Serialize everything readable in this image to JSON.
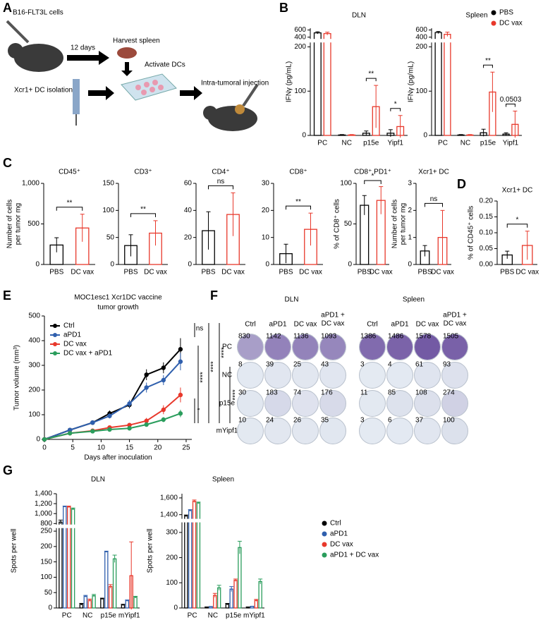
{
  "panels": [
    "A",
    "B",
    "C",
    "D",
    "E",
    "F",
    "G"
  ],
  "schematic": {
    "texts": [
      "B16-FLT3L cells",
      "12 days",
      "Harvest spleen",
      "Activate DCs",
      "Intra-tumoral injection",
      "Xcr1+ DC isolation"
    ]
  },
  "chart_data": [
    {
      "type": "bar",
      "title": "DLN",
      "ylabel": "IFNγ (pg/mL)",
      "categories": [
        "PC",
        "NC",
        "p15e",
        "Yipf1"
      ],
      "series": [
        {
          "name": "PBS",
          "color": "#000000",
          "values": [
            520,
            1,
            5,
            5
          ],
          "errors": [
            30,
            1,
            5,
            8
          ]
        },
        {
          "name": "DC vax",
          "color": "#e8382b",
          "values": [
            500,
            1,
            65,
            20
          ],
          "errors": [
            40,
            1,
            48,
            25
          ]
        }
      ],
      "ylim": [
        0,
        650
      ],
      "axis_break": [
        210,
        350
      ],
      "yticks": [
        0,
        100,
        200,
        400,
        600
      ],
      "significance": [
        null,
        null,
        "**",
        "*"
      ]
    },
    {
      "type": "bar",
      "title": "Spleen",
      "ylabel": "IFNγ (pg/mL)",
      "categories": [
        "PC",
        "NC",
        "p15e",
        "Yipf1"
      ],
      "series": [
        {
          "name": "PBS",
          "color": "#000000",
          "values": [
            530,
            1,
            6,
            3
          ],
          "errors": [
            30,
            1,
            8,
            3
          ]
        },
        {
          "name": "DC vax",
          "color": "#e8382b",
          "values": [
            480,
            1,
            98,
            25
          ],
          "errors": [
            60,
            1,
            45,
            30
          ]
        }
      ],
      "ylim": [
        0,
        650
      ],
      "axis_break": [
        210,
        350
      ],
      "yticks": [
        0,
        100,
        200,
        400,
        600
      ],
      "significance": [
        null,
        null,
        "**",
        "0.0503"
      ],
      "legend": true
    },
    {
      "type": "bar",
      "title": "CD45⁺",
      "ylabel": [
        "Number of cells",
        "per tumor mg"
      ],
      "categories": [
        "PBS",
        "DC vax"
      ],
      "values": [
        240,
        450
      ],
      "errors": [
        90,
        170
      ],
      "colors": [
        "#000000",
        "#e8382b"
      ],
      "ylim": [
        0,
        1000
      ],
      "yticks": [
        0,
        500,
        {
          "value": 1000,
          "label": "1,000"
        }
      ],
      "significance": "**"
    },
    {
      "type": "bar",
      "title": "CD3⁺",
      "categories": [
        "PBS",
        "DC vax"
      ],
      "values": [
        35,
        58
      ],
      "errors": [
        20,
        23
      ],
      "colors": [
        "#000000",
        "#e8382b"
      ],
      "ylim": [
        0,
        150
      ],
      "yticks": [
        0,
        50,
        100,
        150
      ],
      "significance": "**"
    },
    {
      "type": "bar",
      "title": "CD4⁺",
      "categories": [
        "PBS",
        "DC vax"
      ],
      "values": [
        25,
        37
      ],
      "errors": [
        14,
        16
      ],
      "colors": [
        "#000000",
        "#e8382b"
      ],
      "ylim": [
        0,
        60
      ],
      "yticks": [
        0,
        20,
        40,
        60
      ],
      "significance": "ns"
    },
    {
      "type": "bar",
      "title": "CD8⁺",
      "categories": [
        "PBS",
        "DC vax"
      ],
      "values": [
        4,
        13
      ],
      "errors": [
        3.5,
        6
      ],
      "colors": [
        "#000000",
        "#e8382b"
      ],
      "ylim": [
        0,
        30
      ],
      "yticks": [
        0,
        10,
        20,
        30
      ],
      "significance": "**"
    },
    {
      "type": "bar",
      "title": "CD8⁺ PD1⁺",
      "ylabel": "% of CD8⁺ cells",
      "categories": [
        "PBS",
        "DC vax"
      ],
      "values": [
        73,
        79
      ],
      "errors": [
        12,
        17
      ],
      "colors": [
        "#000000",
        "#e8382b"
      ],
      "ylim": [
        0,
        100
      ],
      "yticks": [
        0,
        50,
        100
      ],
      "significance": "*"
    },
    {
      "type": "bar",
      "title": "Xcr1+ DC",
      "ylabel": [
        "Number of cells",
        "per tumor mg"
      ],
      "categories": [
        "PBS",
        "DC vax"
      ],
      "values": [
        0.5,
        1.0
      ],
      "errors": [
        0.2,
        1.0
      ],
      "colors": [
        "#000000",
        "#e8382b"
      ],
      "ylim": [
        0,
        3
      ],
      "yticks": [
        0,
        1,
        2,
        3
      ],
      "significance": "ns"
    },
    {
      "type": "bar",
      "title": "Xcr1+ DC",
      "ylabel": "% of CD45⁺ cells",
      "categories": [
        "PBS",
        "DC vax"
      ],
      "values": [
        0.03,
        0.06
      ],
      "errors": [
        0.012,
        0.045
      ],
      "colors": [
        "#000000",
        "#e8382b"
      ],
      "ylim": [
        0,
        0.2
      ],
      "yticks": [
        {
          "value": 0,
          "label": "0.00"
        },
        {
          "value": 0.05,
          "label": "0.05"
        },
        {
          "value": 0.1,
          "label": "0.10"
        },
        {
          "value": 0.15,
          "label": "0.15"
        },
        {
          "value": 0.2,
          "label": "0.20"
        }
      ],
      "significance": "*"
    },
    {
      "type": "line",
      "title": [
        "MOC1esc1 Xcr1DC vaccine",
        "tumor growth"
      ],
      "xlabel": "Days after inoculation",
      "ylabel": "Tumor volume (mm³)",
      "x": [
        0,
        4.5,
        8.5,
        11.5,
        15,
        18,
        21,
        24
      ],
      "series": [
        {
          "name": "Ctrl",
          "color": "#000000",
          "values": [
            0,
            38,
            68,
            105,
            140,
            262,
            290,
            365
          ],
          "errors": [
            0,
            4,
            6,
            12,
            14,
            22,
            22,
            45
          ]
        },
        {
          "name": "aPD1",
          "color": "#2f5fad",
          "values": [
            0,
            38,
            68,
            95,
            145,
            210,
            240,
            315
          ],
          "errors": [
            0,
            4,
            6,
            10,
            15,
            20,
            20,
            35
          ]
        },
        {
          "name": "DC vax",
          "color": "#e8382b",
          "values": [
            0,
            25,
            35,
            48,
            58,
            75,
            120,
            180
          ],
          "errors": [
            0,
            3,
            4,
            6,
            8,
            12,
            18,
            30
          ]
        },
        {
          "name": "DC vax + aPD1",
          "color": "#2a9d5c",
          "values": [
            0,
            25,
            33,
            40,
            45,
            60,
            80,
            105
          ],
          "errors": [
            0,
            3,
            4,
            5,
            6,
            8,
            10,
            15
          ]
        }
      ],
      "xlim": [
        0,
        26
      ],
      "xticks": [
        0,
        5,
        10,
        15,
        20,
        25
      ],
      "ylim": [
        0,
        500
      ],
      "yticks": [
        0,
        100,
        200,
        300,
        400,
        500
      ],
      "annotations": [
        "ns",
        "****",
        "****",
        "****",
        "*",
        "****"
      ],
      "legend": "upper left"
    },
    {
      "type": "bar",
      "title": "DLN",
      "ylabel": "Spots per well",
      "categories": [
        "PC",
        "NC",
        "p15e",
        "mYipf1"
      ],
      "series": [
        {
          "name": "Ctrl",
          "color": "#000000",
          "values": [
            830,
            12,
            30,
            10
          ],
          "errors": [
            40,
            3,
            2,
            2
          ]
        },
        {
          "name": "aPD1",
          "color": "#2f5fad",
          "values": [
            1142,
            38,
            183,
            24
          ],
          "errors": [
            10,
            3,
            2,
            2
          ]
        },
        {
          "name": "DC vax",
          "color": "#e8382b",
          "values": [
            1136,
            25,
            70,
            105
          ],
          "errors": [
            15,
            4,
            6,
            110
          ]
        },
        {
          "name": "aPD1 + DC vax",
          "color": "#2a9d5c",
          "values": [
            1093,
            40,
            160,
            35
          ],
          "errors": [
            20,
            4,
            12,
            3
          ]
        }
      ],
      "ylim": [
        0,
        1400
      ],
      "axis_break": [
        260,
        780
      ],
      "yticks": [
        0,
        50,
        100,
        150,
        200,
        250,
        800,
        {
          "value": 1000,
          "label": "1,000"
        },
        {
          "value": 1200,
          "label": "1,200"
        },
        {
          "value": 1400,
          "label": "1,400"
        }
      ]
    },
    {
      "type": "bar",
      "title": "Spleen",
      "ylabel": "Spots per well",
      "categories": [
        "PC",
        "NC",
        "p15e",
        "mYipf1"
      ],
      "series": [
        {
          "name": "Ctrl",
          "color": "#000000",
          "values": [
            1386,
            3,
            15,
            3
          ],
          "errors": [
            10,
            1,
            3,
            1
          ]
        },
        {
          "name": "aPD1",
          "color": "#2f5fad",
          "values": [
            1450,
            5,
            75,
            6
          ],
          "errors": [
            10,
            1,
            10,
            1
          ]
        },
        {
          "name": "DC vax",
          "color": "#e8382b",
          "values": [
            1560,
            50,
            110,
            30
          ],
          "errors": [
            15,
            8,
            5,
            4
          ]
        },
        {
          "name": "aPD1 + DC vax",
          "color": "#2a9d5c",
          "values": [
            1540,
            80,
            240,
            105
          ],
          "errors": [
            10,
            10,
            25,
            10
          ]
        }
      ],
      "ylim": [
        0,
        1650
      ],
      "axis_break": [
        340,
        1350
      ],
      "yticks": [
        0,
        100,
        200,
        300,
        {
          "value": 1400,
          "label": "1,400"
        },
        {
          "value": 1600,
          "label": "1,600"
        }
      ],
      "legend": true
    }
  ],
  "elispot": {
    "groups": [
      {
        "title": "DLN",
        "columns": [
          [
            "Ctrl"
          ],
          [
            "aPD1"
          ],
          [
            "DC vax"
          ],
          [
            "aPD1 +",
            "DC vax"
          ]
        ],
        "rows": [
          "PC",
          "NC",
          "p15e",
          "mYipf1"
        ],
        "counts": [
          [
            830,
            1142,
            1136,
            1093
          ],
          [
            8,
            39,
            25,
            43
          ],
          [
            30,
            183,
            74,
            176
          ],
          [
            10,
            24,
            26,
            35
          ]
        ]
      },
      {
        "title": "Spleen",
        "columns": [
          [
            "Ctrl"
          ],
          [
            "aPD1"
          ],
          [
            "DC vax"
          ],
          [
            "aPD1 +",
            "DC vax"
          ]
        ],
        "counts": [
          [
            1386,
            1486,
            1578,
            1505
          ],
          [
            3,
            4,
            61,
            93
          ],
          [
            11,
            85,
            108,
            274
          ],
          [
            3,
            6,
            37,
            100
          ]
        ]
      }
    ]
  }
}
